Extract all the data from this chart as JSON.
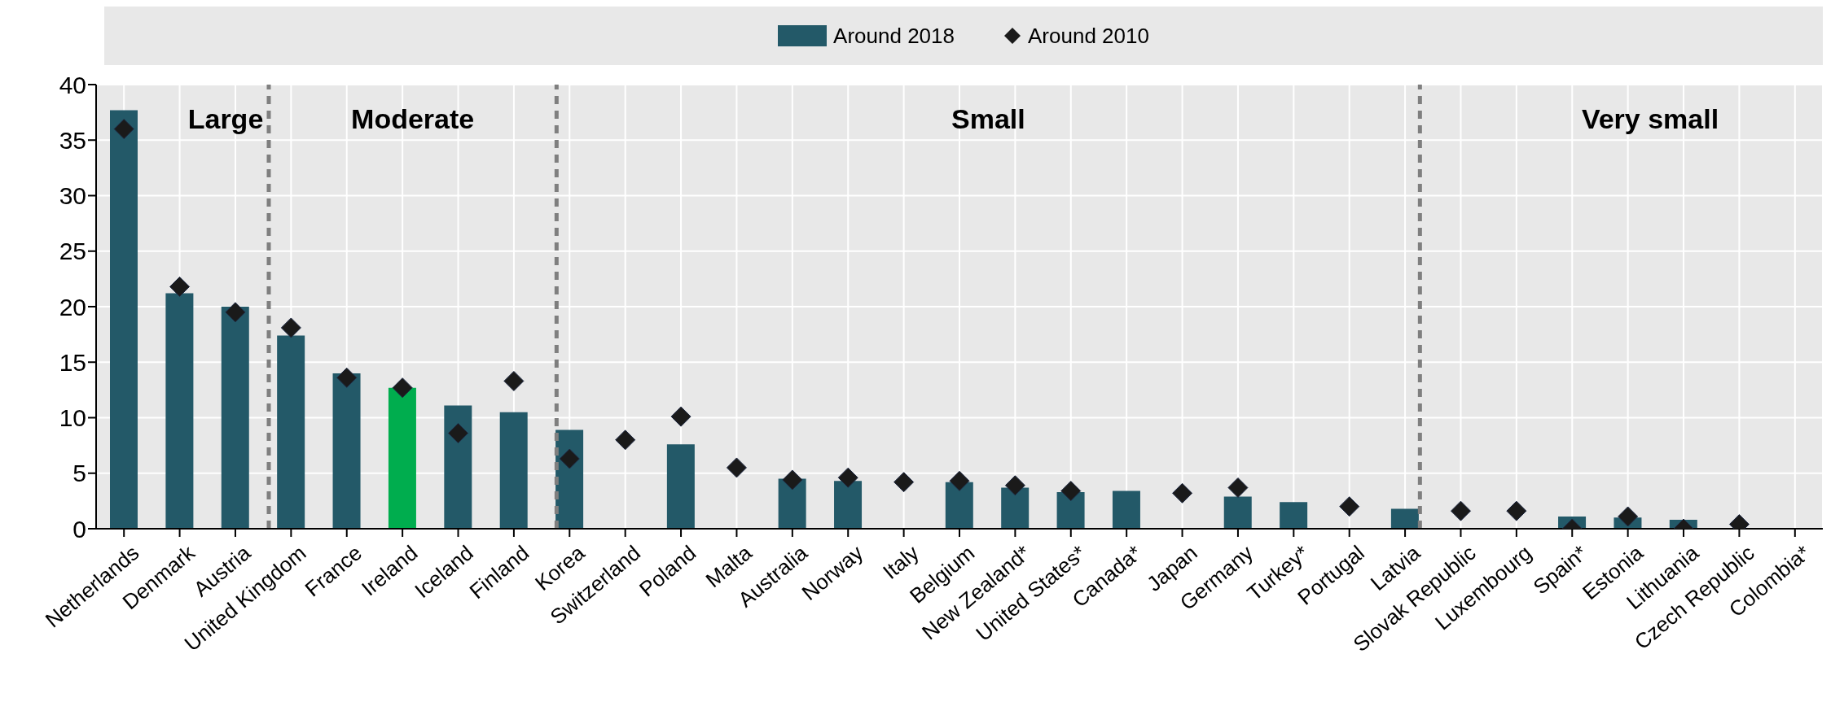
{
  "chart_data": {
    "type": "bar",
    "categories": [
      "Netherlands",
      "Denmark",
      "Austria",
      "United Kingdom",
      "France",
      "Ireland",
      "Iceland",
      "Finland",
      "Korea",
      "Switzerland",
      "Poland",
      "Malta",
      "Australia",
      "Norway",
      "Italy",
      "Belgium",
      "New Zealand*",
      "United States*",
      "Canada*",
      "Japan",
      "Germany",
      "Turkey*",
      "Portugal",
      "Latvia",
      "Slovak Republic",
      "Luxembourg",
      "Spain*",
      "Estonia",
      "Lithuania",
      "Czech Republic",
      "Colombia*"
    ],
    "series": [
      {
        "name": "Around 2018",
        "color": "#235968",
        "colors": [
          "#235968",
          "#235968",
          "#235968",
          "#235968",
          "#235968",
          "#00ad4e",
          "#235968",
          "#235968",
          "#235968",
          "#235968",
          "#235968",
          "#235968",
          "#235968",
          "#235968",
          "#235968",
          "#235968",
          "#235968",
          "#235968",
          "#235968",
          "#235968",
          "#235968",
          "#235968",
          "#235968",
          "#235968",
          "#235968",
          "#235968",
          "#235968",
          "#235968",
          "#235968",
          "#235968",
          "#235968"
        ],
        "values": [
          37.7,
          21.2,
          20.0,
          17.4,
          14.0,
          12.7,
          11.1,
          10.5,
          8.9,
          null,
          7.6,
          null,
          4.5,
          4.3,
          null,
          4.2,
          3.7,
          3.3,
          3.4,
          null,
          2.9,
          2.4,
          null,
          1.8,
          null,
          null,
          1.1,
          1.0,
          0.8,
          null,
          null
        ]
      },
      {
        "name": "Around 2010",
        "type": "scatter",
        "marker": "diamond",
        "color": "#1a1a1a",
        "values": [
          36.0,
          21.8,
          19.5,
          18.1,
          13.6,
          12.7,
          8.6,
          13.3,
          6.3,
          8.0,
          10.1,
          5.5,
          4.4,
          4.6,
          4.2,
          4.3,
          3.9,
          3.4,
          null,
          3.2,
          3.7,
          null,
          2.0,
          null,
          1.6,
          1.6,
          0.0,
          1.1,
          0.0,
          0.4,
          null
        ]
      }
    ],
    "ylim": [
      0,
      40
    ],
    "yticks": [
      0,
      5,
      10,
      15,
      20,
      25,
      30,
      35,
      40
    ],
    "grid": true,
    "legend": "top",
    "ref_lines": [
      {
        "axis": "x",
        "value": "United Kingdom",
        "line_style": "dashed",
        "color": "#7f7f7f"
      },
      {
        "axis": "x",
        "value": "Korea",
        "line_style": "dashed",
        "color": "#7f7f7f"
      },
      {
        "axis": "x",
        "value": "Latvia",
        "line_style": "dashed",
        "color": "#7f7f7f"
      }
    ],
    "annotations": [
      "Large",
      "Moderate",
      "Small",
      "Very small"
    ]
  }
}
